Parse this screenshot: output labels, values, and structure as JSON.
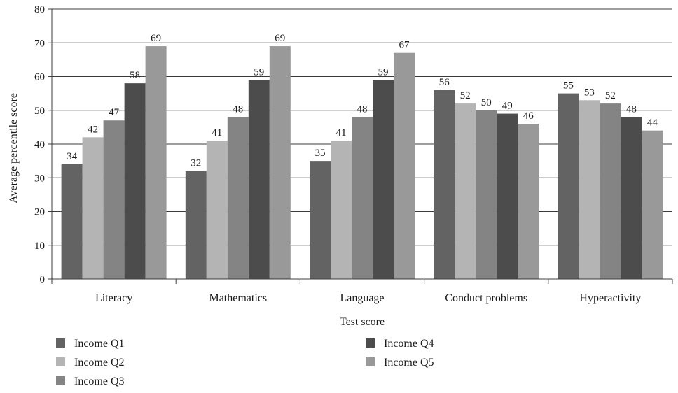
{
  "chart_data": {
    "type": "bar",
    "title": "",
    "xlabel": "Test score",
    "ylabel": "Average percentile score",
    "ylim": [
      0,
      80
    ],
    "yticks": [
      0,
      10,
      20,
      30,
      40,
      50,
      60,
      70,
      80
    ],
    "grid": true,
    "legend_position": "bottom",
    "categories": [
      "Literacy",
      "Mathematics",
      "Language",
      "Conduct problems",
      "Hyperactivity"
    ],
    "series": [
      {
        "name": "Income Q1",
        "color": "#636363",
        "values": [
          34,
          32,
          35,
          56,
          55
        ]
      },
      {
        "name": "Income Q2",
        "color": "#b4b4b4",
        "values": [
          42,
          41,
          41,
          52,
          53
        ]
      },
      {
        "name": "Income Q3",
        "color": "#848484",
        "values": [
          47,
          48,
          48,
          50,
          52
        ]
      },
      {
        "name": "Income Q4",
        "color": "#4c4c4c",
        "values": [
          58,
          59,
          59,
          49,
          48
        ]
      },
      {
        "name": "Income Q5",
        "color": "#999999",
        "values": [
          69,
          69,
          67,
          46,
          44
        ]
      }
    ]
  }
}
